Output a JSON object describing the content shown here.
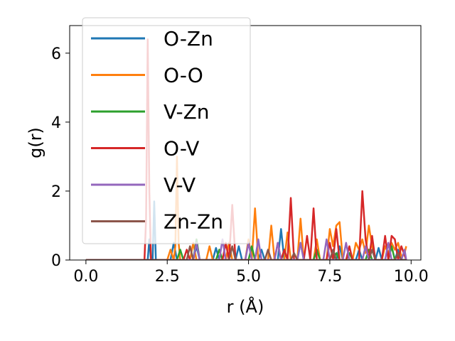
{
  "chart_data": {
    "type": "line",
    "xlabel": "r (Å)",
    "ylabel": "g(r)",
    "xlim": [
      -0.5,
      10.3
    ],
    "ylim": [
      0,
      6.8
    ],
    "xticks": [
      "0.0",
      "2.5",
      "5.0",
      "7.5",
      "10.0"
    ],
    "xtick_values": [
      0,
      2.5,
      5,
      7.5,
      10
    ],
    "yticks": [
      "0",
      "2",
      "4",
      "6"
    ],
    "ytick_values": [
      0,
      2,
      4,
      6
    ],
    "legend_position": "upper-left",
    "series": [
      {
        "name": "O-Zn",
        "color": "#1f77b4",
        "points": [
          [
            0,
            0
          ],
          [
            1.9,
            0
          ],
          [
            1.95,
            0.6
          ],
          [
            2.0,
            0
          ],
          [
            2.05,
            0
          ],
          [
            2.1,
            1.7
          ],
          [
            2.15,
            0
          ],
          [
            2.6,
            0
          ],
          [
            2.7,
            0.5
          ],
          [
            2.8,
            0
          ],
          [
            3.3,
            0
          ],
          [
            3.4,
            0.4
          ],
          [
            3.5,
            0
          ],
          [
            3.9,
            0
          ],
          [
            4.0,
            0.35
          ],
          [
            4.1,
            0
          ],
          [
            4.6,
            0
          ],
          [
            4.7,
            0.4
          ],
          [
            4.8,
            0
          ],
          [
            5.3,
            0
          ],
          [
            5.4,
            0.3
          ],
          [
            5.5,
            0
          ],
          [
            5.9,
            0
          ],
          [
            6.0,
            0.9
          ],
          [
            6.1,
            0
          ],
          [
            6.5,
            0
          ],
          [
            6.6,
            0.5
          ],
          [
            6.7,
            0
          ],
          [
            7.0,
            0
          ],
          [
            7.1,
            0.3
          ],
          [
            7.2,
            0
          ],
          [
            7.7,
            0
          ],
          [
            7.8,
            0.4
          ],
          [
            7.9,
            0
          ],
          [
            8.3,
            0
          ],
          [
            8.4,
            0.3
          ],
          [
            8.5,
            0
          ],
          [
            8.9,
            0
          ],
          [
            9.0,
            0.35
          ],
          [
            9.1,
            0
          ],
          [
            9.5,
            0
          ],
          [
            9.6,
            0.3
          ],
          [
            9.7,
            0
          ],
          [
            9.85,
            0
          ]
        ]
      },
      {
        "name": "O-O",
        "color": "#ff7f0e",
        "points": [
          [
            0,
            0
          ],
          [
            2.5,
            0
          ],
          [
            2.6,
            0.3
          ],
          [
            2.7,
            0
          ],
          [
            2.75,
            0.4
          ],
          [
            2.8,
            3.0
          ],
          [
            2.85,
            0.5
          ],
          [
            2.9,
            0
          ],
          [
            3.2,
            0
          ],
          [
            3.3,
            0.5
          ],
          [
            3.4,
            0
          ],
          [
            3.7,
            0
          ],
          [
            3.8,
            0.4
          ],
          [
            3.9,
            0
          ],
          [
            4.3,
            0
          ],
          [
            4.4,
            0.5
          ],
          [
            4.5,
            0
          ],
          [
            4.9,
            0
          ],
          [
            5.0,
            0.6
          ],
          [
            5.1,
            0
          ],
          [
            5.2,
            1.5
          ],
          [
            5.3,
            0
          ],
          [
            5.6,
            0
          ],
          [
            5.7,
            1.0
          ],
          [
            5.8,
            0
          ],
          [
            6.1,
            0
          ],
          [
            6.2,
            0.8
          ],
          [
            6.3,
            0
          ],
          [
            6.5,
            0
          ],
          [
            6.6,
            1.2
          ],
          [
            6.7,
            0
          ],
          [
            7.0,
            0
          ],
          [
            7.1,
            0.6
          ],
          [
            7.2,
            0
          ],
          [
            7.4,
            0
          ],
          [
            7.5,
            0.9
          ],
          [
            7.6,
            0.4
          ],
          [
            7.7,
            1.0
          ],
          [
            7.8,
            1.1
          ],
          [
            7.9,
            0
          ],
          [
            8.2,
            0
          ],
          [
            8.3,
            0.5
          ],
          [
            8.4,
            0.3
          ],
          [
            8.5,
            0.6
          ],
          [
            8.6,
            0.2
          ],
          [
            8.7,
            1.0
          ],
          [
            8.8,
            0.4
          ],
          [
            8.9,
            0
          ],
          [
            9.1,
            0
          ],
          [
            9.2,
            0.4
          ],
          [
            9.3,
            0.2
          ],
          [
            9.4,
            0.5
          ],
          [
            9.5,
            0.3
          ],
          [
            9.6,
            0.5
          ],
          [
            9.7,
            0.1
          ],
          [
            9.8,
            0.2
          ],
          [
            9.85,
            0.4
          ]
        ]
      },
      {
        "name": "V-Zn",
        "color": "#2ca02c",
        "points": [
          [
            0,
            0
          ],
          [
            2.8,
            0
          ],
          [
            2.9,
            0.3
          ],
          [
            3.0,
            0
          ],
          [
            3.3,
            0
          ],
          [
            3.4,
            0.6
          ],
          [
            3.5,
            0
          ],
          [
            4.0,
            0
          ],
          [
            4.1,
            0.3
          ],
          [
            4.2,
            0
          ],
          [
            5.0,
            0
          ],
          [
            5.1,
            0.4
          ],
          [
            5.2,
            0
          ],
          [
            6.0,
            0
          ],
          [
            6.1,
            0.3
          ],
          [
            6.2,
            0
          ],
          [
            7.0,
            0
          ],
          [
            7.1,
            0.3
          ],
          [
            7.2,
            0
          ],
          [
            7.6,
            0
          ],
          [
            7.7,
            0.2
          ],
          [
            7.8,
            0
          ],
          [
            8.0,
            0
          ],
          [
            8.1,
            0.2
          ],
          [
            8.2,
            0
          ],
          [
            8.6,
            0
          ],
          [
            8.7,
            0.3
          ],
          [
            8.8,
            0
          ],
          [
            9.3,
            0
          ],
          [
            9.4,
            0.4
          ],
          [
            9.5,
            0
          ],
          [
            9.85,
            0
          ]
        ]
      },
      {
        "name": "O-V",
        "color": "#d62728",
        "points": [
          [
            0,
            0
          ],
          [
            1.8,
            0
          ],
          [
            1.85,
            1.2
          ],
          [
            1.9,
            6.4
          ],
          [
            1.95,
            2.0
          ],
          [
            2.0,
            0
          ],
          [
            3.0,
            0
          ],
          [
            3.1,
            0.3
          ],
          [
            3.2,
            0
          ],
          [
            4.2,
            0
          ],
          [
            4.3,
            0.5
          ],
          [
            4.4,
            0
          ],
          [
            4.5,
            1.6
          ],
          [
            4.6,
            0
          ],
          [
            5.8,
            0
          ],
          [
            5.9,
            0.5
          ],
          [
            6.0,
            0
          ],
          [
            6.1,
            0.3
          ],
          [
            6.2,
            0
          ],
          [
            6.3,
            1.8
          ],
          [
            6.4,
            0
          ],
          [
            6.7,
            0
          ],
          [
            6.8,
            0.7
          ],
          [
            6.9,
            0
          ],
          [
            7.0,
            1.5
          ],
          [
            7.1,
            0
          ],
          [
            7.4,
            0
          ],
          [
            7.5,
            0.5
          ],
          [
            7.6,
            0
          ],
          [
            7.7,
            0.9
          ],
          [
            7.8,
            0
          ],
          [
            8.0,
            0
          ],
          [
            8.1,
            0.4
          ],
          [
            8.2,
            0
          ],
          [
            8.4,
            0
          ],
          [
            8.5,
            2.0
          ],
          [
            8.6,
            0.6
          ],
          [
            8.7,
            0
          ],
          [
            8.8,
            0.7
          ],
          [
            8.9,
            0
          ],
          [
            9.1,
            0
          ],
          [
            9.2,
            0.7
          ],
          [
            9.3,
            0
          ],
          [
            9.4,
            0.7
          ],
          [
            9.5,
            0.6
          ],
          [
            9.6,
            0
          ],
          [
            9.7,
            0.4
          ],
          [
            9.85,
            0
          ]
        ]
      },
      {
        "name": "V-V",
        "color": "#9467bd",
        "points": [
          [
            0,
            0
          ],
          [
            3.3,
            0
          ],
          [
            3.4,
            0.5
          ],
          [
            3.5,
            0
          ],
          [
            4.1,
            0
          ],
          [
            4.2,
            0.6
          ],
          [
            4.3,
            0
          ],
          [
            4.9,
            0
          ],
          [
            5.0,
            0.5
          ],
          [
            5.1,
            0
          ],
          [
            5.2,
            0
          ],
          [
            5.3,
            0.6
          ],
          [
            5.4,
            0
          ],
          [
            5.8,
            0
          ],
          [
            5.9,
            0.5
          ],
          [
            6.0,
            0
          ],
          [
            6.5,
            0
          ],
          [
            6.6,
            0.5
          ],
          [
            6.7,
            0
          ],
          [
            7.3,
            0
          ],
          [
            7.4,
            0.6
          ],
          [
            7.5,
            0
          ],
          [
            7.9,
            0
          ],
          [
            8.0,
            0.5
          ],
          [
            8.1,
            0
          ],
          [
            8.5,
            0
          ],
          [
            8.6,
            0.4
          ],
          [
            8.7,
            0
          ],
          [
            9.2,
            0
          ],
          [
            9.3,
            0.5
          ],
          [
            9.4,
            0
          ],
          [
            9.7,
            0
          ],
          [
            9.8,
            0.3
          ],
          [
            9.85,
            0
          ]
        ]
      },
      {
        "name": "Zn-Zn",
        "color": "#8c564b",
        "points": [
          [
            0,
            0
          ],
          [
            3.1,
            0
          ],
          [
            3.2,
            0.4
          ],
          [
            3.3,
            0
          ],
          [
            4.4,
            0
          ],
          [
            4.5,
            0.4
          ],
          [
            4.6,
            0
          ],
          [
            5.5,
            0
          ],
          [
            5.6,
            0.3
          ],
          [
            5.7,
            0
          ],
          [
            6.3,
            0
          ],
          [
            6.4,
            0.2
          ],
          [
            6.5,
            0
          ],
          [
            7.5,
            0
          ],
          [
            7.6,
            0.3
          ],
          [
            7.7,
            0
          ],
          [
            8.7,
            0
          ],
          [
            8.8,
            0.3
          ],
          [
            8.9,
            0
          ],
          [
            9.5,
            0
          ],
          [
            9.6,
            0.2
          ],
          [
            9.7,
            0
          ],
          [
            9.85,
            0
          ]
        ]
      }
    ]
  }
}
